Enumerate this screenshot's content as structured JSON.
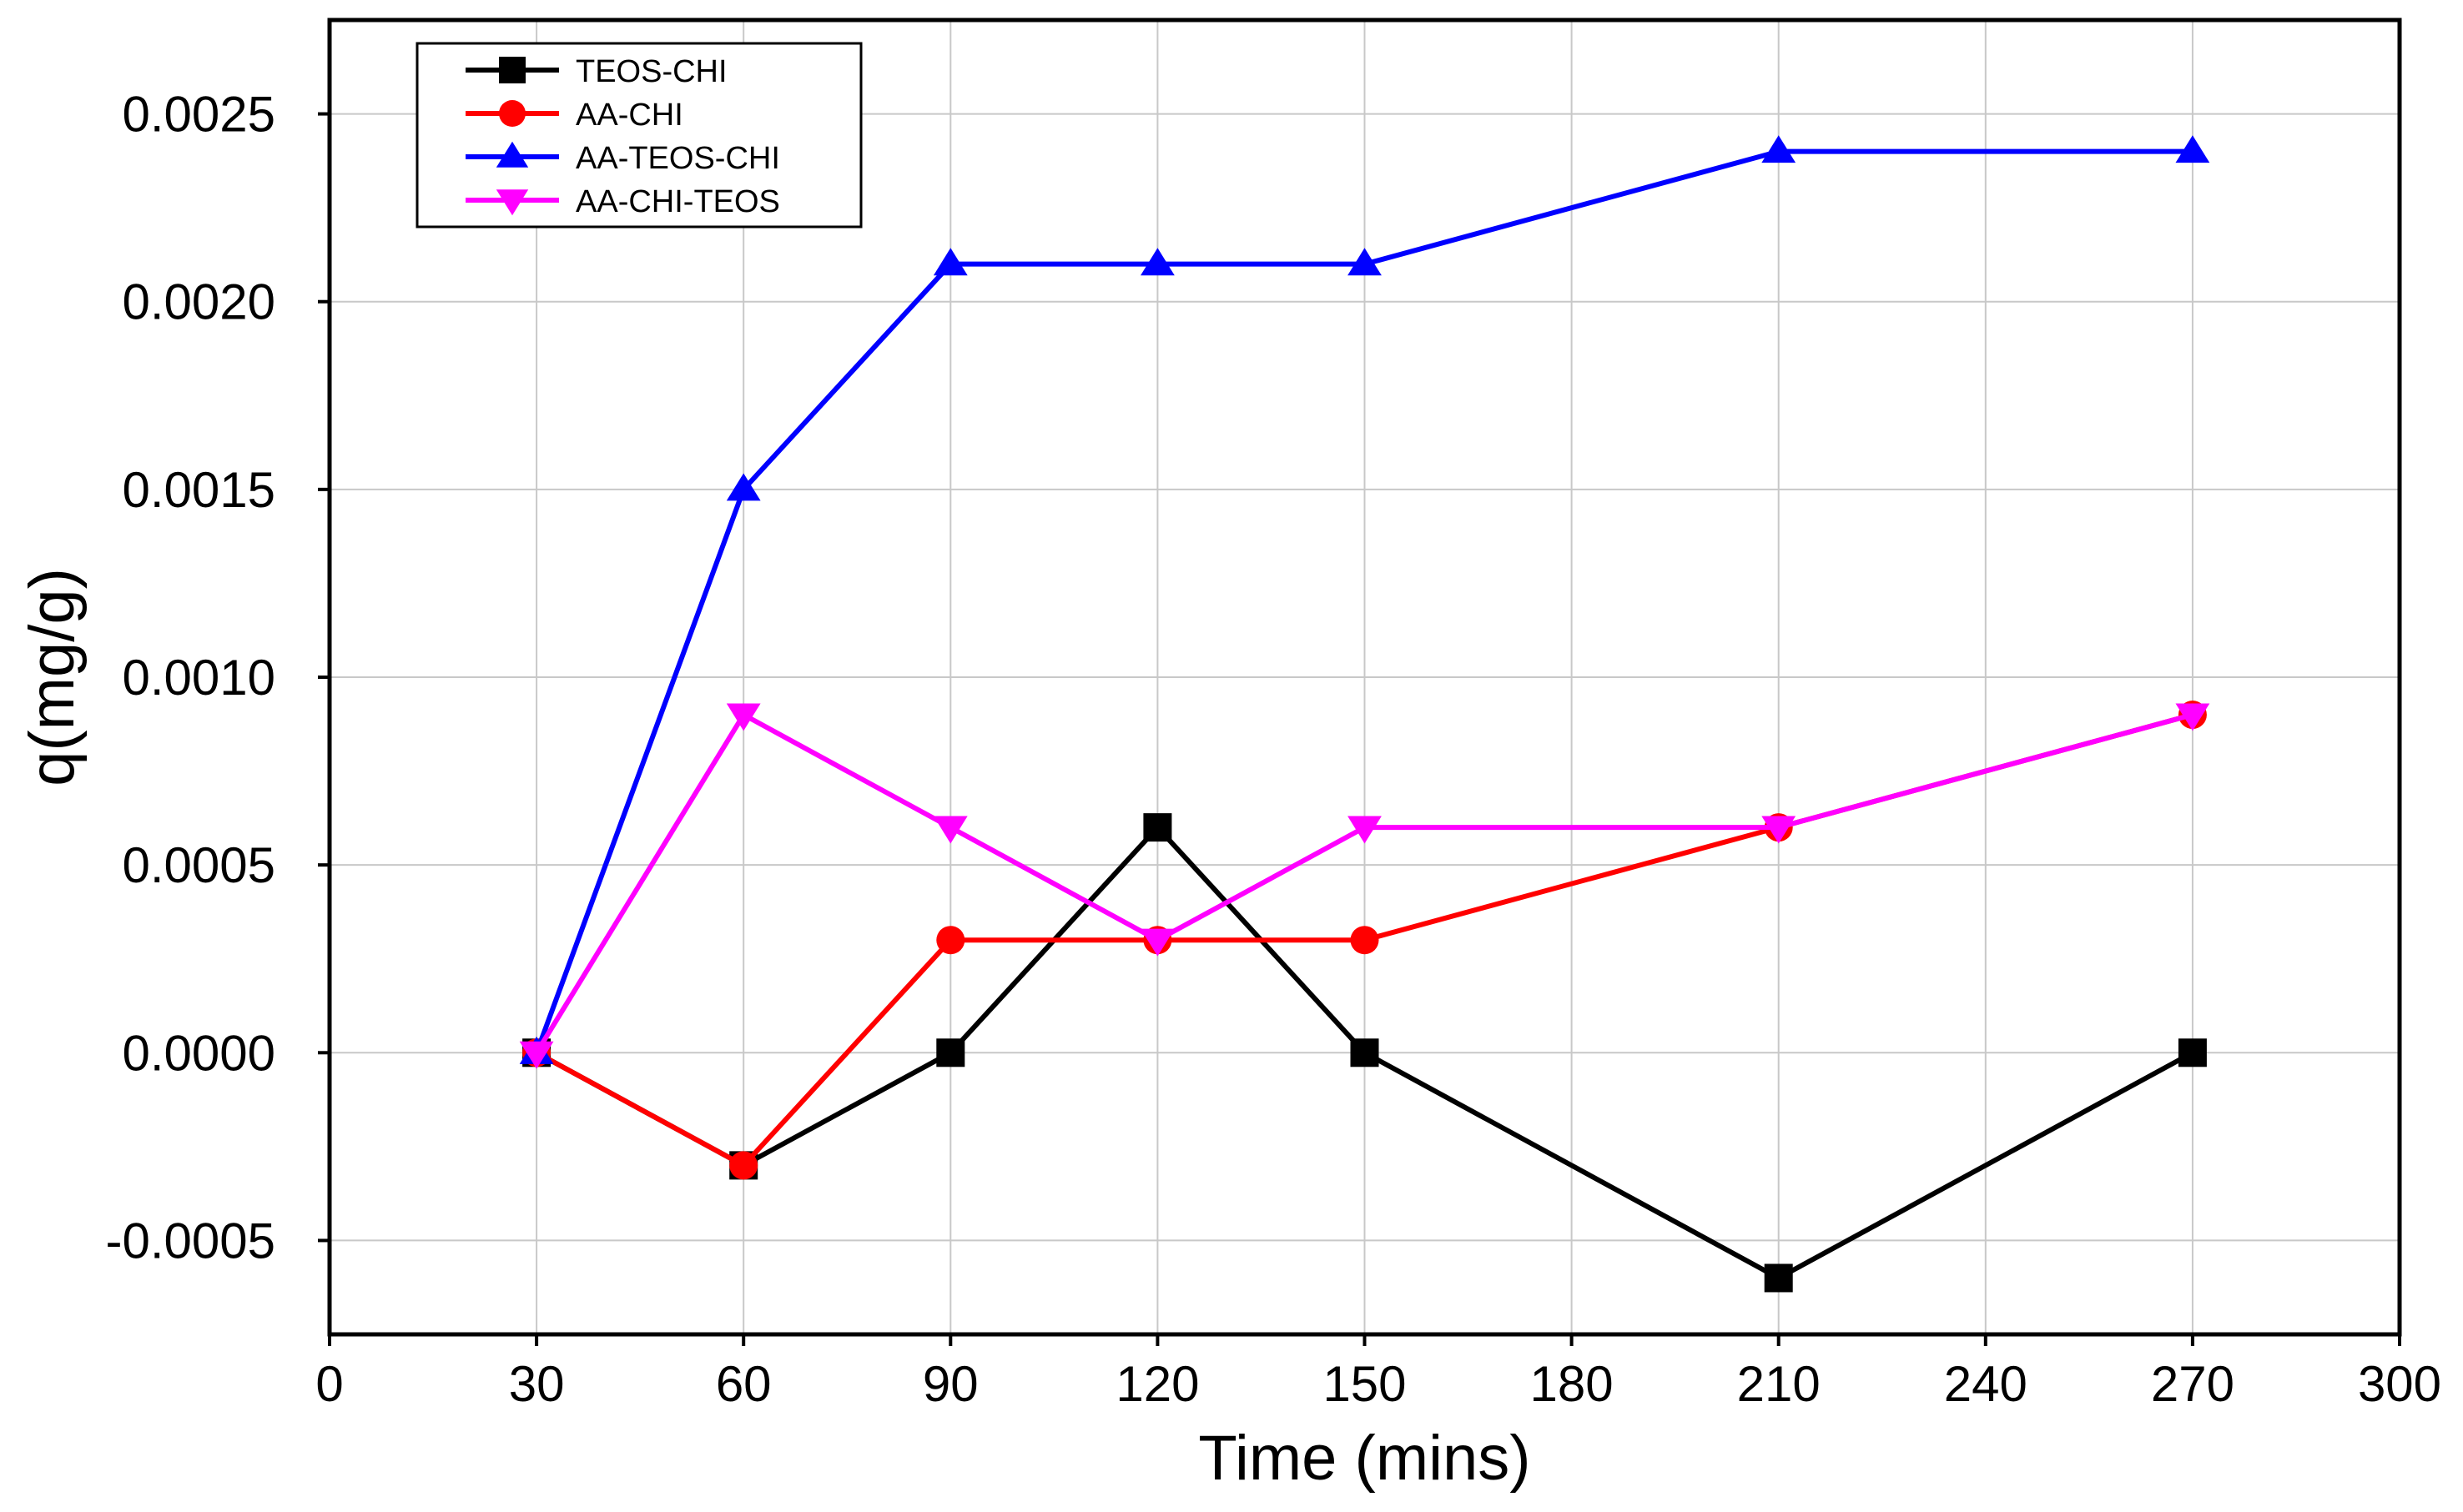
{
  "chart_data": {
    "type": "line",
    "title": "",
    "xlabel": "Time (mins)",
    "ylabel": "q(mg/g)",
    "xlim": [
      0,
      300
    ],
    "ylim": [
      -0.00075,
      0.00275
    ],
    "grid": true,
    "legend_position": "top-left",
    "x_ticks": [
      0,
      30,
      60,
      90,
      120,
      150,
      180,
      210,
      240,
      270,
      300
    ],
    "x_tick_labels": [
      "0",
      "30",
      "60",
      "90",
      "120",
      "150",
      "180",
      "210",
      "240",
      "270",
      "300"
    ],
    "y_ticks": [
      -0.0005,
      0.0,
      0.0005,
      0.001,
      0.0015,
      0.002,
      0.0025
    ],
    "y_tick_labels": [
      "-0.0005",
      "0.0000",
      "0.0005",
      "0.0010",
      "0.0015",
      "0.0020",
      "0.0025"
    ],
    "x": [
      30,
      60,
      90,
      120,
      150,
      210,
      270
    ],
    "series": [
      {
        "name": "TEOS-CHI",
        "color": "#000000",
        "marker": "square",
        "values": [
          0.0,
          -0.0003,
          0.0,
          0.0006,
          0.0,
          -0.0006,
          0.0
        ]
      },
      {
        "name": "AA-CHI",
        "color": "#ff0000",
        "marker": "circle",
        "values": [
          0.0,
          -0.0003,
          0.0003,
          0.0003,
          0.0003,
          0.0006,
          0.0009
        ]
      },
      {
        "name": "AA-TEOS-CHI",
        "color": "#0000ff",
        "marker": "triangle-up",
        "values": [
          0.0,
          0.0015,
          0.0021,
          0.0021,
          0.0021,
          0.0024,
          0.0024
        ]
      },
      {
        "name": "AA-CHI-TEOS",
        "color": "#ff00ff",
        "marker": "triangle-down",
        "values": [
          0.0,
          0.0009,
          0.0006,
          0.0003,
          0.0006,
          0.0006,
          0.0009
        ]
      }
    ]
  }
}
